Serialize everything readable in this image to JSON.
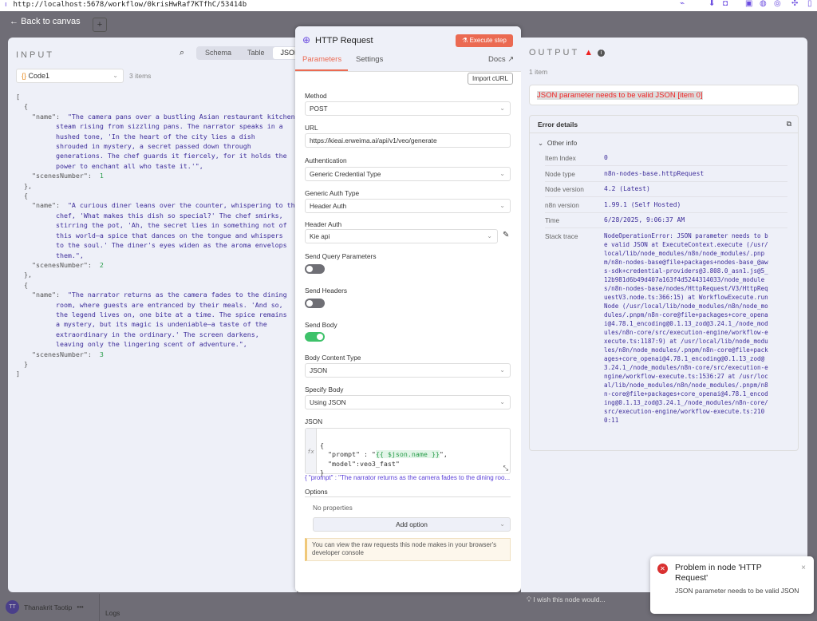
{
  "browser": {
    "url": "http://localhost:5678/workflow/0krisHwRaf7KTfhC/53414b"
  },
  "nav": {
    "back_label": "Back to canvas",
    "add_label": "+",
    "user_initials": "TT",
    "user_name": "Thanakrit Taotip",
    "more": "•••",
    "logs_label": "Logs"
  },
  "input": {
    "title": "INPUT",
    "views": [
      "Schema",
      "Table",
      "JSON"
    ],
    "active_view": "JSON",
    "source_node": "Code1",
    "item_count": "3 items",
    "items": [
      {
        "name": "The camera pans over a bustling Asian restaurant kitchen, steam rising from sizzling pans. The narrator speaks in a hushed tone, 'In the heart of the city lies a dish shrouded in mystery, a secret passed down through generations. The chef guards it fiercely, for it holds the power to enchant all who taste it.'",
        "scenesNumber": 1
      },
      {
        "name": "A curious diner leans over the counter, whispering to the chef, 'What makes this dish so special?' The chef smirks, stirring the pot, 'Ah, the secret lies in something not of this world—a spice that dances on the tongue and whispers to the soul.' The diner's eyes widen as the aroma envelops them.",
        "scenesNumber": 2
      },
      {
        "name": "The narrator returns as the camera fades to the dining room, where guests are entranced by their meals. 'And so, the legend lives on, one bite at a time. The spice remains a mystery, but its magic is undeniable—a taste of the extraordinary in the ordinary.' The screen darkens, leaving only the lingering scent of adventure.",
        "scenesNumber": 3
      }
    ]
  },
  "node": {
    "title": "HTTP Request",
    "execute_label": "Execute step",
    "tabs": [
      "Parameters",
      "Settings"
    ],
    "active_tab": "Parameters",
    "docs_label": "Docs",
    "import_label": "Import cURL",
    "method_label": "Method",
    "method": "POST",
    "url_label": "URL",
    "url": "https://kieai.erweima.ai/api/v1/veo/generate",
    "auth_label": "Authentication",
    "auth": "Generic Credential Type",
    "generic_auth_label": "Generic Auth Type",
    "generic_auth": "Header Auth",
    "header_auth_label": "Header Auth",
    "header_auth": "Kie api",
    "send_query_label": "Send Query Parameters",
    "send_query": false,
    "send_headers_label": "Send Headers",
    "send_headers": false,
    "send_body_label": "Send Body",
    "send_body": true,
    "body_type_label": "Body Content Type",
    "body_type": "JSON",
    "specify_body_label": "Specify Body",
    "specify_body": "Using JSON",
    "json_label": "JSON",
    "json_lines": [
      "{",
      "  \"prompt\" : \"",
      "{{ $json.name }}",
      "\",",
      "  \"model\":veo3_fast\"",
      "}"
    ],
    "json_preview": "{   \"prompt\" : \"The narrator returns as the camera fades to the dining roo...",
    "options_label": "Options",
    "no_properties": "No properties",
    "add_option": "Add option",
    "notice": "You can view the raw requests this node makes in your browser's developer console",
    "feedback": "I wish this node would..."
  },
  "output": {
    "title": "OUTPUT",
    "item_count": "1 item",
    "error": "JSON parameter needs to be valid JSON [item 0]",
    "details_title": "Error details",
    "other_info": "Other info",
    "rows": [
      {
        "k": "Item Index",
        "v": "0"
      },
      {
        "k": "Node type",
        "v": "n8n-nodes-base.httpRequest"
      },
      {
        "k": "Node version",
        "v": "4.2 (Latest)"
      },
      {
        "k": "n8n version",
        "v": "1.99.1 (Self Hosted)"
      },
      {
        "k": "Time",
        "v": "6/28/2025, 9:06:37 AM"
      }
    ],
    "stack_label": "Stack trace",
    "stack": "NodeOperationError: JSON parameter needs to be valid JSON at ExecuteContext.execute (/usr/local/lib/node_modules/n8n/node_modules/.pnpm/n8n-nodes-base@file+packages+nodes-base_@aws-sdk+credential-providers@3.808.0_asn1.js@5_12b981d6b49d407a163f4d5244314033/node_modules/n8n-nodes-base/nodes/HttpRequest/V3/HttpRequestV3.node.ts:366:15) at WorkflowExecute.runNode (/usr/local/lib/node_modules/n8n/node_modules/.pnpm/n8n-core@file+packages+core_openai@4.78.1_encoding@0.1.13_zod@3.24.1_/node_modules/n8n-core/src/execution-engine/workflow-execute.ts:1187:9) at /usr/local/lib/node_modules/n8n/node_modules/.pnpm/n8n-core@file+packages+core_openai@4.78.1_encoding@0.1.13_zod@3.24.1_/node_modules/n8n-core/src/execution-engine/workflow-execute.ts:1536:27 at /usr/local/lib/node_modules/n8n/node_modules/.pnpm/n8n-core@file+packages+core_openai@4.78.1_encoding@0.1.13_zod@3.24.1_/node_modules/n8n-core/src/execution-engine/workflow-execute.ts:2100:11"
  },
  "toast": {
    "title": "Problem in node 'HTTP Request'",
    "message": "JSON parameter needs to be valid JSON"
  },
  "colors": {
    "accent": "#eb6a52",
    "error": "#e22222",
    "toggle_on": "#3ec26a",
    "string": "#3d2d9a"
  }
}
